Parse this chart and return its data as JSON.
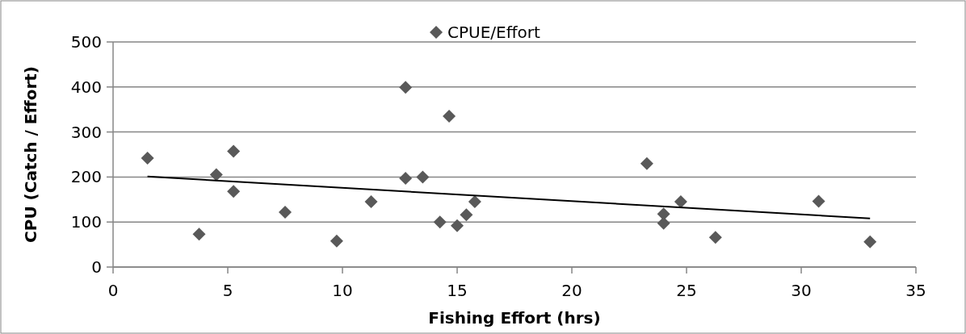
{
  "chart_data": {
    "type": "scatter",
    "xlabel": "Fishing Effort (hrs)",
    "ylabel": "CPU  (Catch / Effort)",
    "xlim": [
      0,
      35
    ],
    "xticks": [
      0,
      5,
      10,
      15,
      20,
      25,
      30,
      35
    ],
    "ylim": [
      0,
      500
    ],
    "yticks": [
      0,
      100,
      200,
      300,
      400,
      500
    ],
    "grid": "y",
    "legend": "top",
    "marker": "diamond",
    "series": [
      {
        "name": "CPUE/Effort",
        "color": "#595959",
        "x": [
          1.5,
          3.75,
          4.5,
          5.25,
          5.25,
          7.5,
          9.75,
          11.25,
          12.75,
          12.75,
          13.5,
          14.65,
          14.25,
          15.0,
          15.4,
          15.77,
          23.27,
          24.0,
          24.0,
          24.75,
          26.26,
          30.76,
          33.0
        ],
        "values": [
          242,
          73,
          205,
          257,
          168,
          122,
          58,
          145,
          399,
          197,
          200,
          335,
          100,
          92,
          116,
          145,
          230,
          118,
          97,
          145,
          66,
          146,
          56
        ]
      },
      {
        "type": "line",
        "color": "#000000",
        "x": [
          1.5,
          33.0
        ],
        "values": [
          201,
          108
        ],
        "marker": "none"
      }
    ]
  }
}
